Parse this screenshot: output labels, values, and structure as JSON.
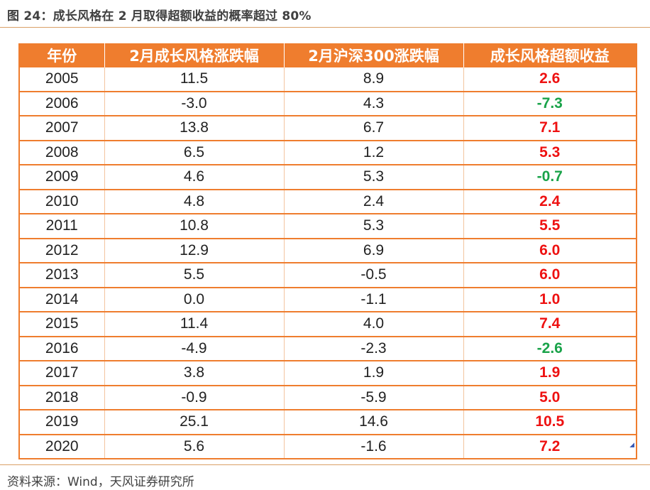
{
  "figure": {
    "title": "图 24：成长风格在 2 月取得超额收益的概率超过 80%",
    "source": "资料来源：Wind，天风证券研究所"
  },
  "colors": {
    "header_bg": "#ef7d2e",
    "positive": "#ee1111",
    "negative": "#1aa34a"
  },
  "chart_data": {
    "type": "table",
    "title": "图 24：成长风格在 2 月取得超额收益的概率超过 80%",
    "columns": [
      "年份",
      "2月成长风格涨跌幅",
      "2月沪深300涨跌幅",
      "成长风格超额收益"
    ],
    "rows": [
      [
        "2005",
        "11.5",
        "8.9",
        "2.6"
      ],
      [
        "2006",
        "-3.0",
        "4.3",
        "-7.3"
      ],
      [
        "2007",
        "13.8",
        "6.7",
        "7.1"
      ],
      [
        "2008",
        "6.5",
        "1.2",
        "5.3"
      ],
      [
        "2009",
        "4.6",
        "5.3",
        "-0.7"
      ],
      [
        "2010",
        "4.8",
        "2.4",
        "2.4"
      ],
      [
        "2011",
        "10.8",
        "5.3",
        "5.5"
      ],
      [
        "2012",
        "12.9",
        "6.9",
        "6.0"
      ],
      [
        "2013",
        "5.5",
        "-0.5",
        "6.0"
      ],
      [
        "2014",
        "0.0",
        "-1.1",
        "1.0"
      ],
      [
        "2015",
        "11.4",
        "4.0",
        "7.4"
      ],
      [
        "2016",
        "-4.9",
        "-2.3",
        "-2.6"
      ],
      [
        "2017",
        "3.8",
        "1.9",
        "1.9"
      ],
      [
        "2018",
        "-0.9",
        "-5.9",
        "5.0"
      ],
      [
        "2019",
        "25.1",
        "14.6",
        "10.5"
      ],
      [
        "2020",
        "5.6",
        "-1.6",
        "7.2"
      ]
    ]
  }
}
